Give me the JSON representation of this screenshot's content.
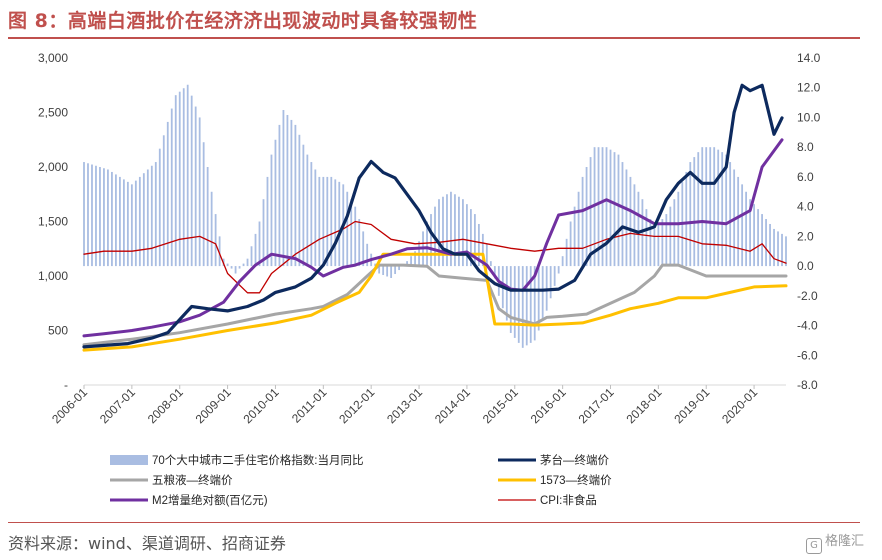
{
  "title": "图 8：高端白酒批价在经济济出现波动时具备较强韧性",
  "source": "资料来源：wind、渠道调研、招商证券",
  "logo": "格隆汇",
  "colors": {
    "title": "#c0504d",
    "index_bar": "#a9bde2",
    "moutai": "#0d2a5e",
    "wuliangye": "#a6a6a6",
    "l1573": "#ffc000",
    "m2": "#7030a0",
    "cpi": "#c00000"
  },
  "chart_data": {
    "type": "bar+line",
    "x_tick_labels": [
      "2006-01",
      "2007-01",
      "2008-01",
      "2009-01",
      "2010-01",
      "2011-01",
      "2012-01",
      "2013-01",
      "2014-01",
      "2015-01",
      "2016-01",
      "2017-01",
      "2018-01",
      "2019-01",
      "2020-01"
    ],
    "x_range": [
      "2006-01",
      "2020-09"
    ],
    "left_axis": {
      "ylim": [
        0,
        3000
      ],
      "ticks": [
        0,
        500,
        1000,
        1500,
        2000,
        2500,
        3000
      ],
      "tick_labels": [
        "-",
        "500",
        "1,000",
        "1,500",
        "2,000",
        "2,500",
        "3,000"
      ]
    },
    "right_axis": {
      "ylim": [
        -8,
        14
      ],
      "ticks": [
        -8,
        -6,
        -4,
        -2,
        0,
        2,
        4,
        6,
        8,
        10,
        12,
        14
      ],
      "tick_labels": [
        "-8.0",
        "-6.0",
        "-4.0",
        "-2.0",
        "0.0",
        "2.0",
        "4.0",
        "6.0",
        "8.0",
        "10.0",
        "12.0",
        "14.0"
      ]
    },
    "grid": false,
    "legend_position": "bottom",
    "bar_series": {
      "name": "70个大中城市二手住宅价格指数:当月同比",
      "axis": "right",
      "points": [
        [
          "2006-01",
          7.0
        ],
        [
          "2006-07",
          6.5
        ],
        [
          "2007-01",
          5.5
        ],
        [
          "2007-07",
          7.0
        ],
        [
          "2007-12",
          11.5
        ],
        [
          "2008-03",
          12.2
        ],
        [
          "2008-06",
          10.0
        ],
        [
          "2008-09",
          5.0
        ],
        [
          "2008-12",
          0.5
        ],
        [
          "2009-03",
          -0.5
        ],
        [
          "2009-06",
          0.5
        ],
        [
          "2009-09",
          3.0
        ],
        [
          "2009-12",
          7.5
        ],
        [
          "2010-03",
          10.5
        ],
        [
          "2010-06",
          9.5
        ],
        [
          "2010-09",
          7.5
        ],
        [
          "2010-12",
          6.0
        ],
        [
          "2011-03",
          6.0
        ],
        [
          "2011-06",
          5.5
        ],
        [
          "2011-09",
          4.0
        ],
        [
          "2011-12",
          1.5
        ],
        [
          "2012-03",
          -0.5
        ],
        [
          "2012-06",
          -0.8
        ],
        [
          "2012-09",
          0.0
        ],
        [
          "2012-12",
          1.0
        ],
        [
          "2013-03",
          3.0
        ],
        [
          "2013-06",
          4.5
        ],
        [
          "2013-09",
          5.0
        ],
        [
          "2013-12",
          4.5
        ],
        [
          "2014-03",
          3.5
        ],
        [
          "2014-06",
          1.5
        ],
        [
          "2014-09",
          -2.0
        ],
        [
          "2014-12",
          -4.5
        ],
        [
          "2015-03",
          -5.5
        ],
        [
          "2015-06",
          -5.0
        ],
        [
          "2015-09",
          -3.0
        ],
        [
          "2015-12",
          -0.5
        ],
        [
          "2016-03",
          3.0
        ],
        [
          "2016-06",
          6.0
        ],
        [
          "2016-09",
          8.0
        ],
        [
          "2016-12",
          8.0
        ],
        [
          "2017-03",
          7.5
        ],
        [
          "2017-06",
          6.0
        ],
        [
          "2017-09",
          4.5
        ],
        [
          "2017-12",
          2.5
        ],
        [
          "2018-03",
          3.5
        ],
        [
          "2018-06",
          5.0
        ],
        [
          "2018-09",
          7.0
        ],
        [
          "2018-12",
          8.0
        ],
        [
          "2019-03",
          8.0
        ],
        [
          "2019-06",
          7.5
        ],
        [
          "2019-09",
          6.0
        ],
        [
          "2019-12",
          4.5
        ],
        [
          "2020-03",
          3.5
        ],
        [
          "2020-06",
          2.5
        ],
        [
          "2020-09",
          2.0
        ]
      ]
    },
    "series": [
      {
        "name": "茅台—终端价",
        "axis": "left",
        "points": [
          [
            "2006-01",
            350
          ],
          [
            "2006-12",
            380
          ],
          [
            "2007-06",
            430
          ],
          [
            "2007-10",
            480
          ],
          [
            "2008-01",
            600
          ],
          [
            "2008-04",
            720
          ],
          [
            "2008-08",
            700
          ],
          [
            "2009-01",
            680
          ],
          [
            "2009-06",
            720
          ],
          [
            "2009-10",
            780
          ],
          [
            "2010-01",
            850
          ],
          [
            "2010-06",
            900
          ],
          [
            "2010-10",
            980
          ],
          [
            "2011-01",
            1100
          ],
          [
            "2011-04",
            1300
          ],
          [
            "2011-07",
            1550
          ],
          [
            "2011-10",
            1900
          ],
          [
            "2012-01",
            2050
          ],
          [
            "2012-04",
            1950
          ],
          [
            "2012-07",
            1900
          ],
          [
            "2012-10",
            1750
          ],
          [
            "2013-01",
            1600
          ],
          [
            "2013-04",
            1400
          ],
          [
            "2013-07",
            1250
          ],
          [
            "2013-10",
            1200
          ],
          [
            "2014-01",
            1200
          ],
          [
            "2014-04",
            1050
          ],
          [
            "2014-08",
            930
          ],
          [
            "2014-12",
            870
          ],
          [
            "2015-04",
            870
          ],
          [
            "2015-08",
            870
          ],
          [
            "2015-12",
            880
          ],
          [
            "2016-04",
            960
          ],
          [
            "2016-08",
            1200
          ],
          [
            "2016-12",
            1300
          ],
          [
            "2017-04",
            1450
          ],
          [
            "2017-08",
            1400
          ],
          [
            "2017-12",
            1450
          ],
          [
            "2018-03",
            1700
          ],
          [
            "2018-06",
            1850
          ],
          [
            "2018-09",
            1950
          ],
          [
            "2018-12",
            1850
          ],
          [
            "2019-03",
            1850
          ],
          [
            "2019-06",
            2000
          ],
          [
            "2019-08",
            2500
          ],
          [
            "2019-10",
            2750
          ],
          [
            "2019-12",
            2700
          ],
          [
            "2020-03",
            2750
          ],
          [
            "2020-06",
            2300
          ],
          [
            "2020-08",
            2450
          ]
        ]
      },
      {
        "name": "五粮液—终端价",
        "axis": "left",
        "points": [
          [
            "2006-01",
            370
          ],
          [
            "2007-01",
            420
          ],
          [
            "2008-01",
            480
          ],
          [
            "2009-01",
            560
          ],
          [
            "2010-01",
            650
          ],
          [
            "2010-10",
            700
          ],
          [
            "2011-01",
            720
          ],
          [
            "2011-07",
            830
          ],
          [
            "2011-12",
            1000
          ],
          [
            "2012-03",
            1100
          ],
          [
            "2012-09",
            1100
          ],
          [
            "2013-03",
            1090
          ],
          [
            "2013-06",
            1000
          ],
          [
            "2013-12",
            980
          ],
          [
            "2014-06",
            960
          ],
          [
            "2014-09",
            700
          ],
          [
            "2014-12",
            620
          ],
          [
            "2015-06",
            560
          ],
          [
            "2015-09",
            620
          ],
          [
            "2016-01",
            630
          ],
          [
            "2016-07",
            650
          ],
          [
            "2017-01",
            750
          ],
          [
            "2017-07",
            850
          ],
          [
            "2017-12",
            1000
          ],
          [
            "2018-02",
            1100
          ],
          [
            "2018-06",
            1100
          ],
          [
            "2019-01",
            1000
          ],
          [
            "2019-07",
            1000
          ],
          [
            "2020-01",
            1000
          ],
          [
            "2020-09",
            1000
          ]
        ]
      },
      {
        "name": "1573—终端价",
        "axis": "left",
        "points": [
          [
            "2006-01",
            320
          ],
          [
            "2007-01",
            350
          ],
          [
            "2008-01",
            420
          ],
          [
            "2009-01",
            500
          ],
          [
            "2010-01",
            570
          ],
          [
            "2010-10",
            640
          ],
          [
            "2011-04",
            750
          ],
          [
            "2011-10",
            850
          ],
          [
            "2012-01",
            1000
          ],
          [
            "2012-04",
            1200
          ],
          [
            "2012-10",
            1200
          ],
          [
            "2013-06",
            1200
          ],
          [
            "2014-01",
            1200
          ],
          [
            "2014-05",
            1200
          ],
          [
            "2014-08",
            560
          ],
          [
            "2014-12",
            560
          ],
          [
            "2015-06",
            550
          ],
          [
            "2016-01",
            560
          ],
          [
            "2016-06",
            570
          ],
          [
            "2017-01",
            640
          ],
          [
            "2017-06",
            700
          ],
          [
            "2018-01",
            750
          ],
          [
            "2018-06",
            800
          ],
          [
            "2019-01",
            800
          ],
          [
            "2019-07",
            850
          ],
          [
            "2020-01",
            900
          ],
          [
            "2020-09",
            910
          ]
        ]
      },
      {
        "name": "M2增量绝对额(百亿元)",
        "axis": "left",
        "points": [
          [
            "2006-01",
            450
          ],
          [
            "2006-06",
            470
          ],
          [
            "2007-01",
            500
          ],
          [
            "2007-06",
            530
          ],
          [
            "2008-01",
            580
          ],
          [
            "2008-06",
            640
          ],
          [
            "2008-12",
            760
          ],
          [
            "2009-04",
            950
          ],
          [
            "2009-08",
            1100
          ],
          [
            "2009-12",
            1200
          ],
          [
            "2010-06",
            1160
          ],
          [
            "2010-10",
            1080
          ],
          [
            "2011-01",
            1000
          ],
          [
            "2011-06",
            1080
          ],
          [
            "2011-09",
            1100
          ],
          [
            "2012-01",
            1150
          ],
          [
            "2012-06",
            1200
          ],
          [
            "2012-10",
            1250
          ],
          [
            "2013-03",
            1260
          ],
          [
            "2013-09",
            1200
          ],
          [
            "2014-01",
            1220
          ],
          [
            "2014-06",
            1100
          ],
          [
            "2014-09",
            950
          ],
          [
            "2014-12",
            880
          ],
          [
            "2015-03",
            870
          ],
          [
            "2015-06",
            1000
          ],
          [
            "2015-09",
            1300
          ],
          [
            "2015-12",
            1560
          ],
          [
            "2016-06",
            1600
          ],
          [
            "2016-12",
            1700
          ],
          [
            "2017-06",
            1600
          ],
          [
            "2017-12",
            1480
          ],
          [
            "2018-06",
            1480
          ],
          [
            "2018-12",
            1500
          ],
          [
            "2019-06",
            1480
          ],
          [
            "2019-12",
            1600
          ],
          [
            "2020-03",
            2000
          ],
          [
            "2020-06",
            2150
          ],
          [
            "2020-08",
            2250
          ]
        ]
      },
      {
        "name": "CPI:非食品",
        "axis": "right",
        "points": [
          [
            "2006-01",
            0.8
          ],
          [
            "2006-06",
            1.0
          ],
          [
            "2007-01",
            1.0
          ],
          [
            "2007-06",
            1.2
          ],
          [
            "2008-01",
            1.8
          ],
          [
            "2008-06",
            2.0
          ],
          [
            "2008-10",
            1.5
          ],
          [
            "2009-01",
            -0.5
          ],
          [
            "2009-06",
            -1.8
          ],
          [
            "2009-09",
            -1.8
          ],
          [
            "2009-12",
            -0.5
          ],
          [
            "2010-06",
            0.8
          ],
          [
            "2010-12",
            1.8
          ],
          [
            "2011-06",
            2.5
          ],
          [
            "2011-09",
            3.0
          ],
          [
            "2012-01",
            2.8
          ],
          [
            "2012-06",
            1.8
          ],
          [
            "2012-12",
            1.5
          ],
          [
            "2013-06",
            1.6
          ],
          [
            "2013-12",
            1.8
          ],
          [
            "2014-06",
            1.5
          ],
          [
            "2014-12",
            1.2
          ],
          [
            "2015-06",
            1.0
          ],
          [
            "2015-12",
            1.2
          ],
          [
            "2016-06",
            1.2
          ],
          [
            "2016-12",
            1.8
          ],
          [
            "2017-06",
            2.2
          ],
          [
            "2017-12",
            2.0
          ],
          [
            "2018-06",
            2.0
          ],
          [
            "2018-12",
            1.5
          ],
          [
            "2019-06",
            1.4
          ],
          [
            "2019-12",
            1.0
          ],
          [
            "2020-03",
            1.5
          ],
          [
            "2020-06",
            0.5
          ],
          [
            "2020-09",
            0.2
          ]
        ]
      }
    ],
    "legend": [
      {
        "name": "70个大中城市二手住宅价格指数:当月同比",
        "kind": "bar",
        "color": "#a9bde2"
      },
      {
        "name": "茅台—终端价",
        "kind": "line",
        "color": "#0d2a5e"
      },
      {
        "name": "五粮液—终端价",
        "kind": "line",
        "color": "#a6a6a6"
      },
      {
        "name": "1573—终端价",
        "kind": "line",
        "color": "#ffc000"
      },
      {
        "name": "M2增量绝对额(百亿元)",
        "kind": "line",
        "color": "#7030a0"
      },
      {
        "name": "CPI:非食品",
        "kind": "line",
        "color": "#c00000"
      }
    ]
  }
}
